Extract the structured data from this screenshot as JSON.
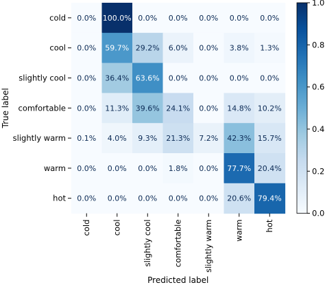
{
  "chart_data": {
    "type": "heatmap",
    "title": "",
    "xlabel": "Predicted label",
    "ylabel": "True label",
    "x_categories": [
      "cold",
      "cool",
      "slightly cool",
      "comfortable",
      "slightly warm",
      "warm",
      "hot"
    ],
    "y_categories": [
      "cold",
      "cool",
      "slightly cool",
      "comfortable",
      "slightly warm",
      "warm",
      "hot"
    ],
    "values": [
      [
        0.0,
        100.0,
        0.0,
        0.0,
        0.0,
        0.0,
        0.0
      ],
      [
        0.0,
        59.7,
        29.2,
        6.0,
        0.0,
        3.8,
        1.3
      ],
      [
        0.0,
        36.4,
        63.6,
        0.0,
        0.0,
        0.0,
        0.0
      ],
      [
        0.0,
        11.3,
        39.6,
        24.1,
        0.0,
        14.8,
        10.2
      ],
      [
        0.1,
        4.0,
        9.3,
        21.3,
        7.2,
        42.3,
        15.7
      ],
      [
        0.0,
        0.0,
        0.0,
        1.8,
        0.0,
        77.7,
        20.4
      ],
      [
        0.0,
        0.0,
        0.0,
        0.0,
        0.0,
        20.6,
        79.4
      ]
    ],
    "value_suffix": "%",
    "colormap": "Blues",
    "colorbar": {
      "range": [
        0.0,
        1.0
      ],
      "ticks": [
        "0.0",
        "0.2",
        "0.4",
        "0.6",
        "0.8",
        "1.0"
      ]
    }
  }
}
